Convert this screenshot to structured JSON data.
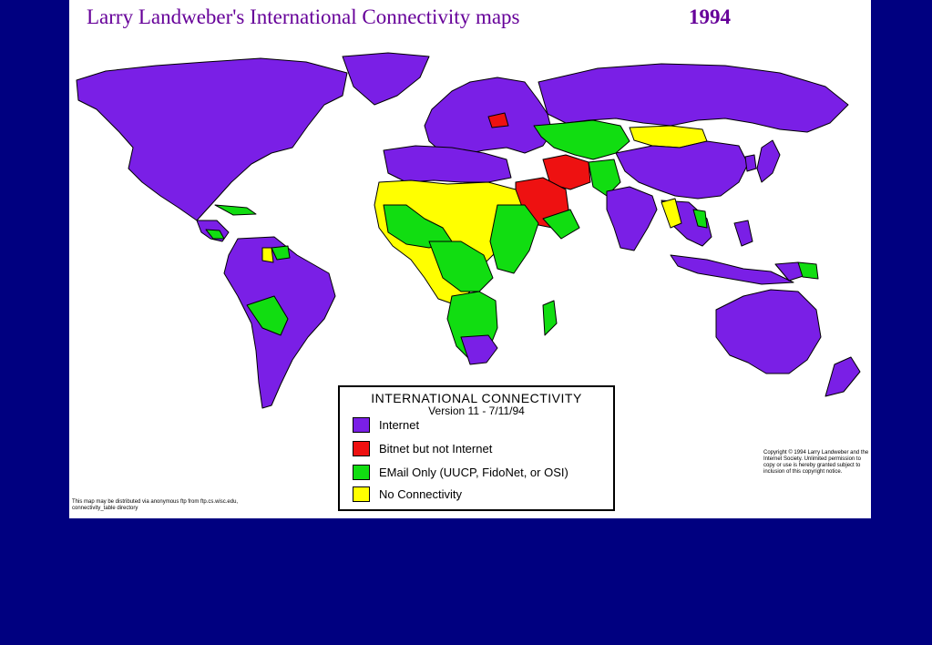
{
  "slide": {
    "title": "Larry Landweber's International Connectivity maps",
    "year": "1994",
    "title_color": "#660099",
    "background_color": "#000080"
  },
  "legend": {
    "heading": "INTERNATIONAL CONNECTIVITY",
    "version": "Version 11 - 7/11/94",
    "items": [
      {
        "label": "Internet",
        "color": "#7a1fe6"
      },
      {
        "label": "Bitnet but not Internet",
        "color": "#ee1111"
      },
      {
        "label": "EMail Only (UUCP, FidoNet, or OSI)",
        "color": "#11dd11"
      },
      {
        "label": "No Connectivity",
        "color": "#ffff00"
      }
    ]
  },
  "notes": {
    "left": "This map may be distributed via anonymous ftp from ftp.cs.wisc.edu, connectivity_table directory",
    "right": "Copyright © 1994 Larry Landweber and the Internet Society. Unlimited permission to copy or use is hereby granted subject to inclusion of this copyright notice."
  }
}
